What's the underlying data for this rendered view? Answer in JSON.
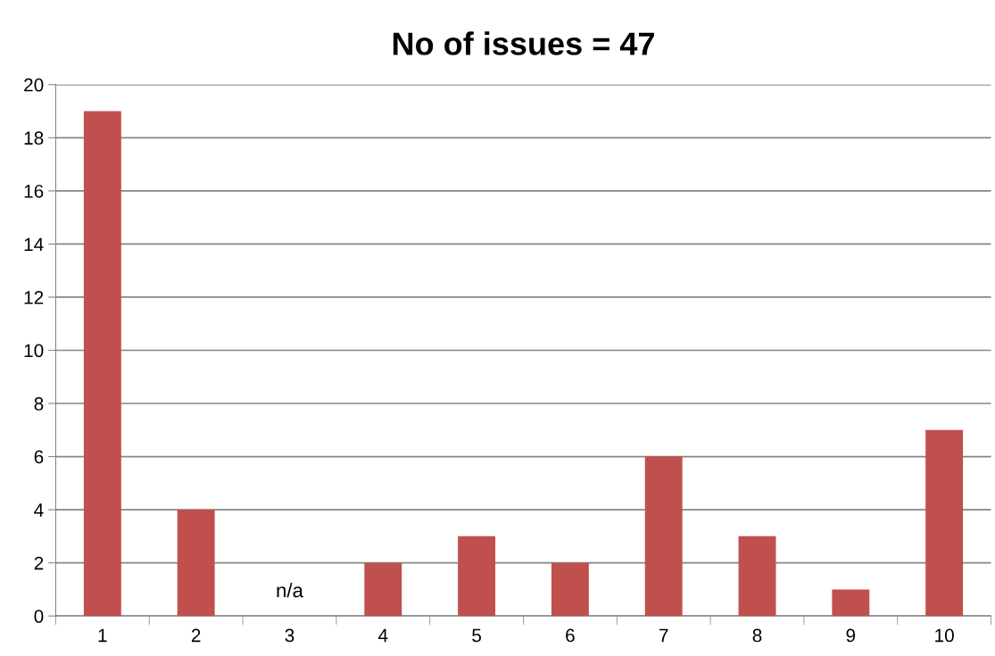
{
  "chart_data": {
    "type": "bar",
    "title": "No of issues = 47",
    "categories": [
      "1",
      "2",
      "3",
      "4",
      "5",
      "6",
      "7",
      "8",
      "9",
      "10"
    ],
    "values": [
      19,
      4,
      null,
      2,
      3,
      2,
      6,
      3,
      1,
      7
    ],
    "color": "#c0504d",
    "ylim": [
      0,
      20
    ],
    "yticks": [
      0,
      2,
      4,
      6,
      8,
      10,
      12,
      14,
      16,
      18,
      20
    ],
    "grid": "y",
    "annotations": [
      "n/a"
    ]
  }
}
